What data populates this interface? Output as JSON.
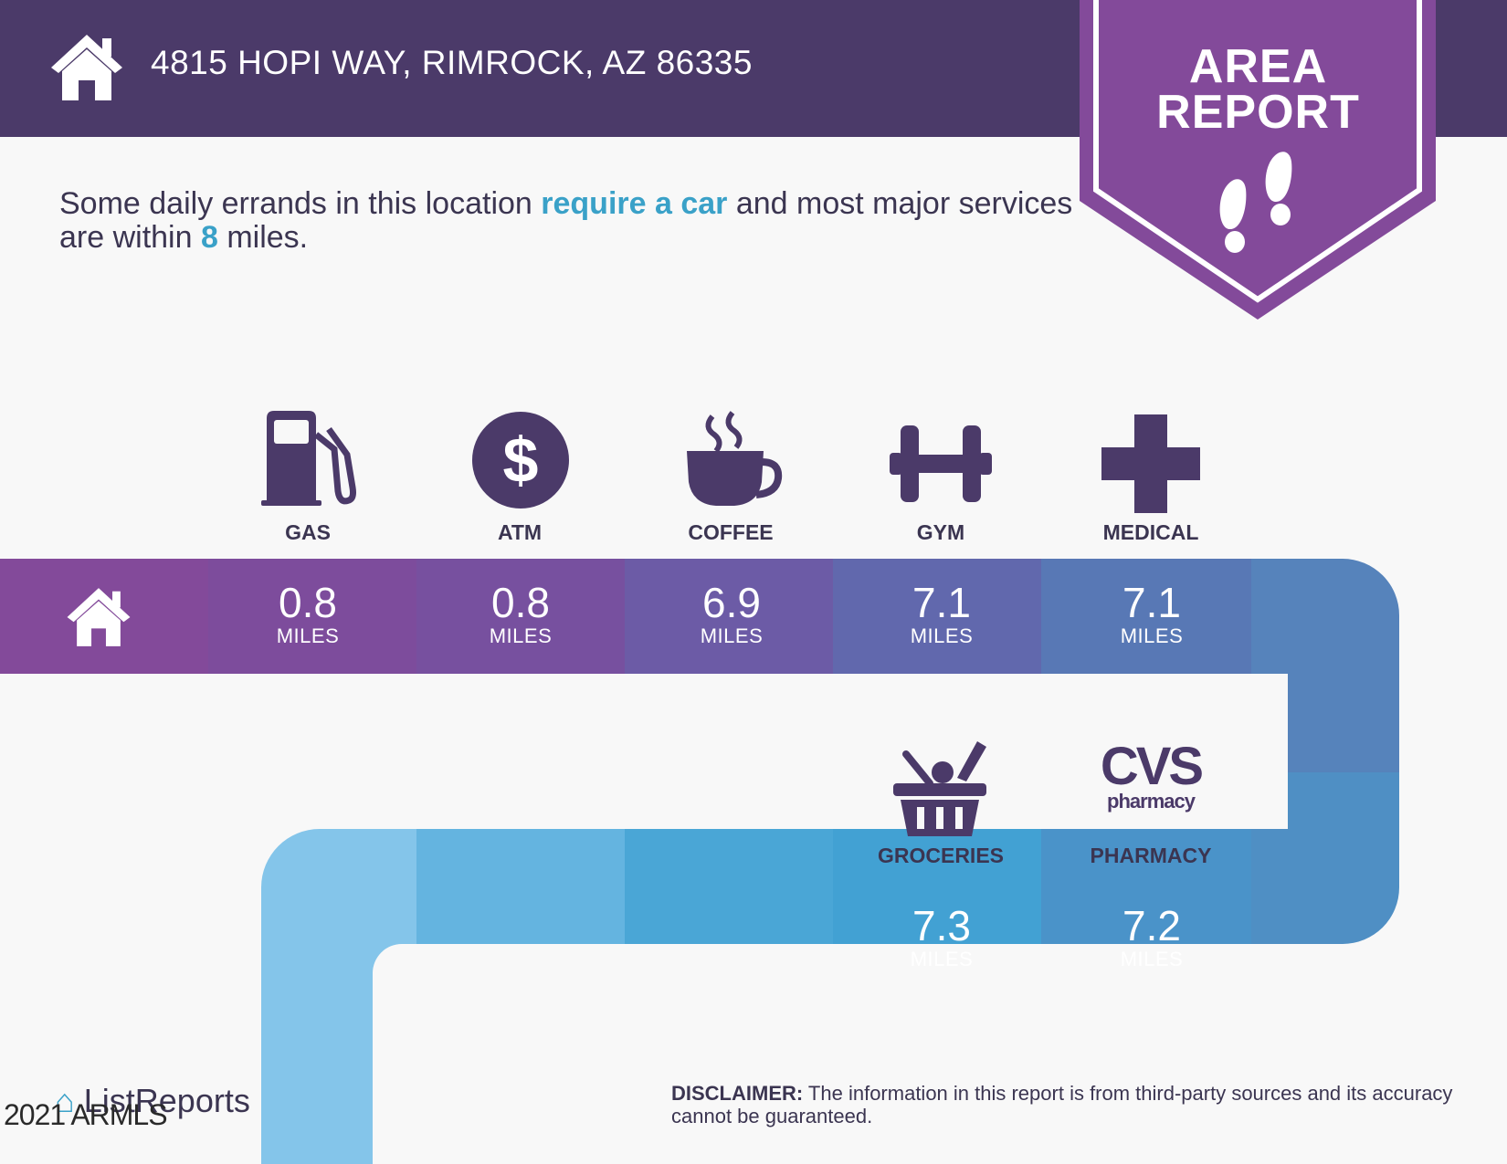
{
  "header": {
    "address": "4815 HOPI WAY, RIMROCK, AZ 86335",
    "home_icon": "house-icon"
  },
  "badge": {
    "line1": "AREA",
    "line2": "REPORT",
    "icon": "footprints-icon"
  },
  "summary": {
    "part1": "Some daily errands in this location ",
    "highlight": "require a car",
    "part2": " and most major services are within ",
    "distance": "8",
    "part3": " miles."
  },
  "row1": [
    {
      "label": "GAS",
      "icon": "gas-pump-icon",
      "value": "0.8",
      "unit": "MILES"
    },
    {
      "label": "ATM",
      "icon": "dollar-icon",
      "value": "0.8",
      "unit": "MILES"
    },
    {
      "label": "COFFEE",
      "icon": "coffee-cup-icon",
      "value": "6.9",
      "unit": "MILES"
    },
    {
      "label": "GYM",
      "icon": "dumbbell-icon",
      "value": "7.1",
      "unit": "MILES"
    },
    {
      "label": "MEDICAL",
      "icon": "medical-cross-icon",
      "value": "7.1",
      "unit": "MILES"
    }
  ],
  "row2": [
    {
      "label": "GROCERIES",
      "icon": "grocery-basket-icon",
      "value": "7.3",
      "unit": "MILES"
    },
    {
      "label": "PHARMACY",
      "icon": "cvs-pharmacy-logo",
      "logo_main": "CVS",
      "logo_sub": "pharmacy",
      "value": "7.2",
      "unit": "MILES"
    }
  ],
  "disclaimer": {
    "title": "DISCLAIMER:",
    "text": " The information in this report is from third-party sources and its accuracy cannot be guaranteed."
  },
  "brand": "ListReports",
  "copyright": "2021 ARMLS",
  "colors": {
    "header_bg": "#4b3a69",
    "badge": "#834a9a",
    "highlight": "#3aa1c8",
    "text_dark": "#3b3551"
  }
}
